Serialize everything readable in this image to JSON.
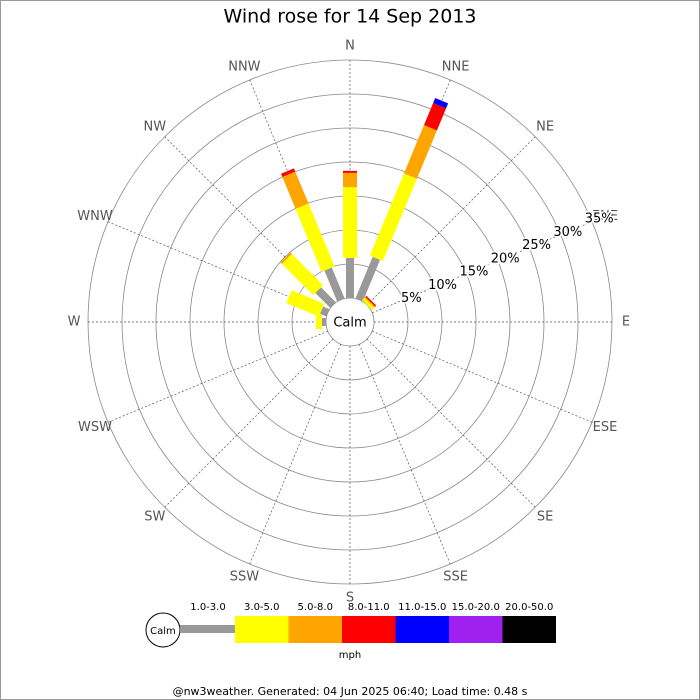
{
  "chart_data": {
    "type": "windrose",
    "title": "Wind rose for 14 Sep 2013",
    "calm_label": "Calm",
    "unit_label": "mph",
    "footer": "@nw3weather. Generated: 04 Jun 2025 06:40; Load time: 0.48 s",
    "categories": [
      "N",
      "NNE",
      "NE",
      "ENE",
      "E",
      "ESE",
      "SE",
      "SSE",
      "S",
      "SSW",
      "SW",
      "WSW",
      "W",
      "WNW",
      "NW",
      "NNW"
    ],
    "rlim": [
      0,
      35
    ],
    "rticks": [
      {
        "value": 5,
        "label": "5%"
      },
      {
        "value": 10,
        "label": "10%"
      },
      {
        "value": 15,
        "label": "15%"
      },
      {
        "value": 20,
        "label": "20%"
      },
      {
        "value": 25,
        "label": "25%"
      },
      {
        "value": 30,
        "label": "30%"
      },
      {
        "value": 35,
        "label": "35%"
      }
    ],
    "grid": true,
    "series": [
      {
        "name": "1.0-3.0",
        "color": "#999999",
        "values": [
          5.9,
          6.6,
          0,
          0,
          0,
          0,
          0,
          0,
          0,
          0,
          0,
          0,
          0.6,
          1.0,
          3.1,
          4.9
        ]
      },
      {
        "name": "3.0-5.0",
        "color": "#ffff00",
        "values": [
          10.4,
          13.1,
          0.5,
          0,
          0,
          0,
          0,
          0,
          0,
          0,
          0,
          0,
          0.9,
          5.2,
          6.5,
          10.0
        ]
      },
      {
        "name": "5.0-8.0",
        "color": "#ffa500",
        "values": [
          2.1,
          7.7,
          0.2,
          0,
          0,
          0,
          0,
          0,
          0,
          0,
          0,
          0,
          0,
          0,
          0.3,
          5.1
        ]
      },
      {
        "name": "8.0-11.0",
        "color": "#ff0000",
        "values": [
          0.3,
          3.5,
          0.2,
          0,
          0,
          0,
          0,
          0,
          0,
          0,
          0,
          0,
          0,
          0,
          0,
          0.5
        ]
      },
      {
        "name": "11.0-15.0",
        "color": "#0000ff",
        "values": [
          0,
          0.8,
          0,
          0,
          0,
          0,
          0,
          0,
          0,
          0,
          0,
          0,
          0,
          0,
          0,
          0
        ]
      },
      {
        "name": "15.0-20.0",
        "color": "#a020f0",
        "values": [
          0,
          0,
          0,
          0,
          0,
          0,
          0,
          0,
          0,
          0,
          0,
          0,
          0,
          0,
          0,
          0
        ]
      },
      {
        "name": "20.0-50.0",
        "color": "#000000",
        "values": [
          0,
          0,
          0,
          0,
          0,
          0,
          0,
          0,
          0,
          0,
          0,
          0,
          0,
          0,
          0,
          0
        ]
      }
    ]
  }
}
